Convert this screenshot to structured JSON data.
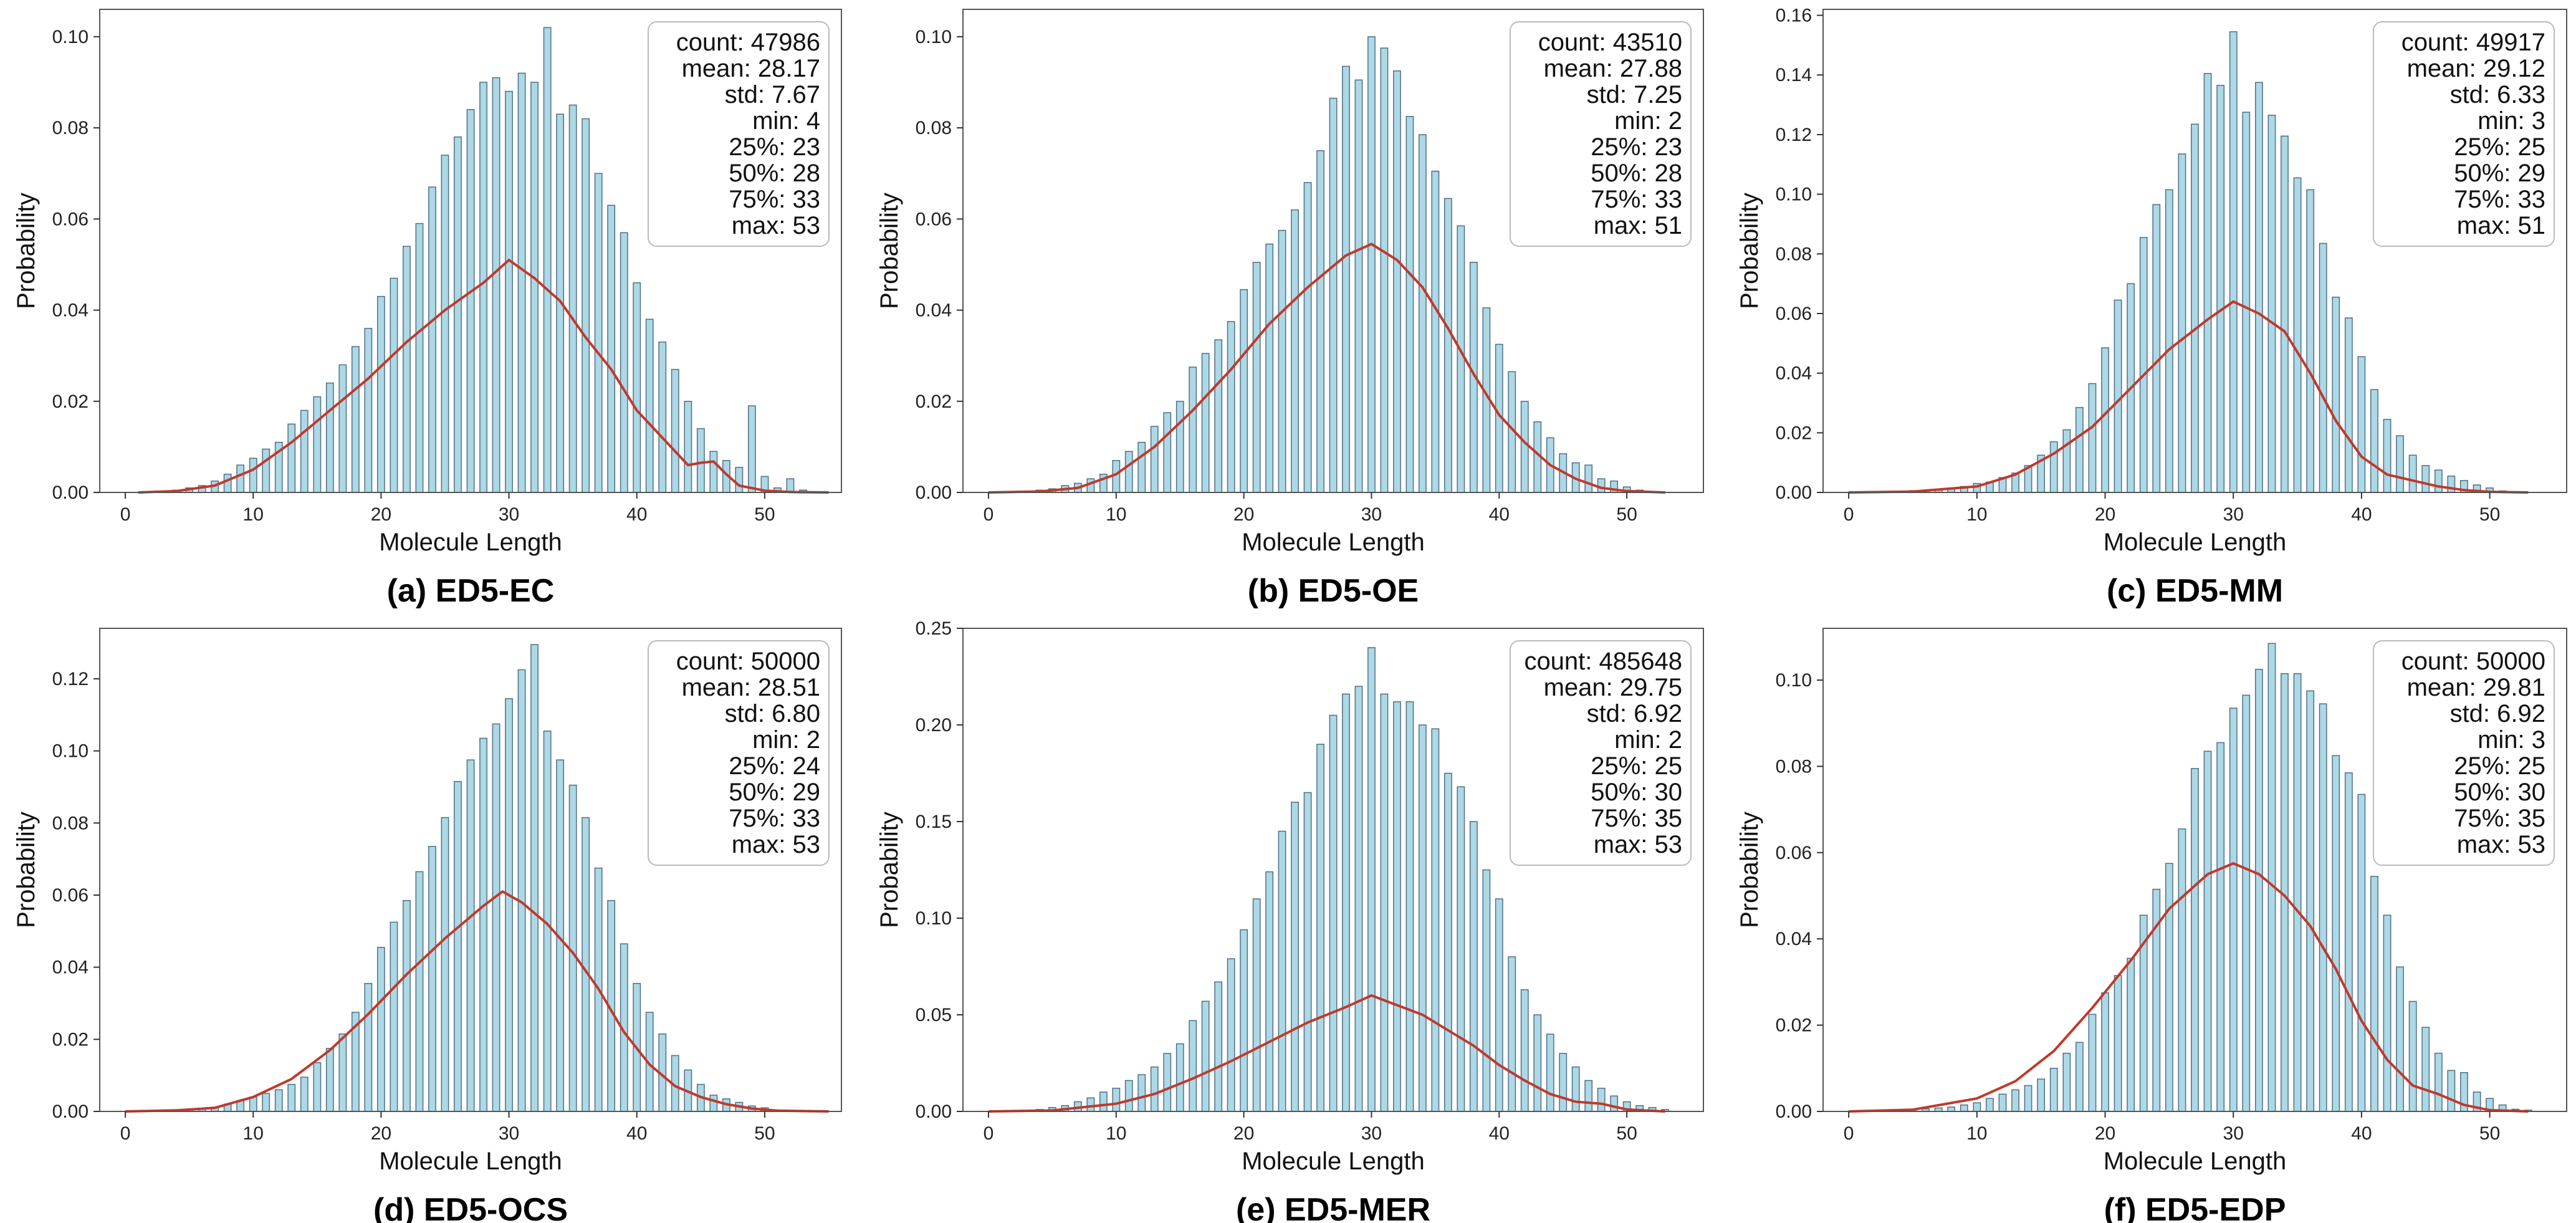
{
  "figure": {
    "background": "#ffffff"
  },
  "colors": {
    "bar_fill": "#add8e6",
    "bar_edge": "#4f6f86",
    "kde": "#c0392b",
    "frame": "#555555",
    "stats_box_edge": "#bbbbbb"
  },
  "chart_data": [
    {
      "id": "a",
      "type": "bar",
      "caption": "(a) ED5-EC",
      "xlabel": "Molecule Length",
      "ylabel": "Probability",
      "xlim": [
        -2,
        56
      ],
      "ylim": [
        0,
        0.106
      ],
      "xticks": [
        0,
        10,
        20,
        30,
        40,
        50
      ],
      "xtick_labels": [
        "0",
        "10",
        "20",
        "30",
        "40",
        "50"
      ],
      "yticks": [
        0,
        0.02,
        0.04,
        0.06,
        0.08,
        0.1
      ],
      "ytick_labels": [
        "0.00",
        "0.02",
        "0.04",
        "0.06",
        "0.08",
        "0.10"
      ],
      "stats": [
        "count: 47986",
        "mean: 28.17",
        "std: 7.67",
        "min: 4",
        "25%: 23",
        "50%: 28",
        "75%: 33",
        "max: 53"
      ],
      "x": [
        4,
        5,
        6,
        7,
        8,
        9,
        10,
        11,
        12,
        13,
        14,
        15,
        16,
        17,
        18,
        19,
        20,
        21,
        22,
        23,
        24,
        25,
        26,
        27,
        28,
        29,
        30,
        31,
        32,
        33,
        34,
        35,
        36,
        37,
        38,
        39,
        40,
        41,
        42,
        43,
        44,
        45,
        46,
        47,
        48,
        49,
        50,
        51,
        52,
        53
      ],
      "values": [
        0.0005,
        0.001,
        0.0015,
        0.0025,
        0.004,
        0.006,
        0.0075,
        0.0095,
        0.011,
        0.015,
        0.018,
        0.021,
        0.024,
        0.028,
        0.032,
        0.036,
        0.043,
        0.047,
        0.054,
        0.059,
        0.067,
        0.074,
        0.078,
        0.084,
        0.09,
        0.091,
        0.088,
        0.092,
        0.09,
        0.102,
        0.083,
        0.085,
        0.082,
        0.07,
        0.063,
        0.057,
        0.046,
        0.038,
        0.033,
        0.027,
        0.02,
        0.014,
        0.009,
        0.007,
        0.0055,
        0.019,
        0.0035,
        0.001,
        0.003,
        0.0005
      ],
      "kde_x": [
        1,
        4,
        7,
        10,
        13,
        16,
        19,
        22,
        25,
        28,
        30,
        32,
        34,
        36,
        38,
        40,
        42,
        44,
        45,
        46,
        47,
        48,
        50,
        52,
        55
      ],
      "kde_y": [
        0.0,
        0.0003,
        0.0015,
        0.005,
        0.011,
        0.018,
        0.025,
        0.033,
        0.04,
        0.046,
        0.051,
        0.047,
        0.042,
        0.034,
        0.027,
        0.018,
        0.012,
        0.006,
        0.0065,
        0.0068,
        0.004,
        0.0015,
        0.0004,
        0.0001,
        0.0
      ]
    },
    {
      "id": "b",
      "type": "bar",
      "caption": "(b) ED5-OE",
      "xlabel": "Molecule Length",
      "ylabel": "Probability",
      "xlim": [
        -2,
        56
      ],
      "ylim": [
        0,
        0.106
      ],
      "xticks": [
        0,
        10,
        20,
        30,
        40,
        50
      ],
      "xtick_labels": [
        "0",
        "10",
        "20",
        "30",
        "40",
        "50"
      ],
      "yticks": [
        0,
        0.02,
        0.04,
        0.06,
        0.08,
        0.1
      ],
      "ytick_labels": [
        "0.00",
        "0.02",
        "0.04",
        "0.06",
        "0.08",
        "0.10"
      ],
      "stats": [
        "count: 43510",
        "mean: 27.88",
        "std: 7.25",
        "min: 2",
        "25%: 23",
        "50%: 28",
        "75%: 33",
        "max: 51"
      ],
      "x": [
        2,
        3,
        4,
        5,
        6,
        7,
        8,
        9,
        10,
        11,
        12,
        13,
        14,
        15,
        16,
        17,
        18,
        19,
        20,
        21,
        22,
        23,
        24,
        25,
        26,
        27,
        28,
        29,
        30,
        31,
        32,
        33,
        34,
        35,
        36,
        37,
        38,
        39,
        40,
        41,
        42,
        43,
        44,
        45,
        46,
        47,
        48,
        49,
        50,
        51
      ],
      "values": [
        0.0002,
        0.0003,
        0.0005,
        0.0008,
        0.0015,
        0.002,
        0.003,
        0.004,
        0.007,
        0.009,
        0.011,
        0.0145,
        0.0175,
        0.02,
        0.0275,
        0.0305,
        0.0335,
        0.0375,
        0.0445,
        0.0505,
        0.0545,
        0.0575,
        0.062,
        0.068,
        0.075,
        0.0865,
        0.0935,
        0.0905,
        0.1,
        0.0975,
        0.0925,
        0.0825,
        0.0785,
        0.0705,
        0.0645,
        0.0585,
        0.0505,
        0.0405,
        0.0325,
        0.0265,
        0.02,
        0.0155,
        0.012,
        0.0085,
        0.0065,
        0.006,
        0.003,
        0.0025,
        0.0012,
        0.0005
      ],
      "kde_x": [
        0,
        4,
        7,
        10,
        13,
        16,
        19,
        22,
        25,
        28,
        30,
        32,
        34,
        36,
        38,
        40,
        42,
        44,
        46,
        48,
        50,
        53
      ],
      "kde_y": [
        0.0,
        0.0002,
        0.001,
        0.004,
        0.01,
        0.018,
        0.027,
        0.037,
        0.045,
        0.052,
        0.0545,
        0.051,
        0.045,
        0.036,
        0.026,
        0.017,
        0.011,
        0.006,
        0.003,
        0.001,
        0.0003,
        0.0
      ]
    },
    {
      "id": "c",
      "type": "bar",
      "caption": "(c) ED5-MM",
      "xlabel": "Molecule Length",
      "ylabel": "Probability",
      "xlim": [
        -2,
        56
      ],
      "ylim": [
        0,
        0.162
      ],
      "xticks": [
        0,
        10,
        20,
        30,
        40,
        50
      ],
      "xtick_labels": [
        "0",
        "10",
        "20",
        "30",
        "40",
        "50"
      ],
      "yticks": [
        0,
        0.02,
        0.04,
        0.06,
        0.08,
        0.1,
        0.12,
        0.14,
        0.16
      ],
      "ytick_labels": [
        "0.00",
        "0.02",
        "0.04",
        "0.06",
        "0.08",
        "0.10",
        "0.12",
        "0.14",
        "0.16"
      ],
      "stats": [
        "count: 49917",
        "mean: 29.12",
        "std: 6.33",
        "min: 3",
        "25%: 25",
        "50%: 29",
        "75%: 33",
        "max: 51"
      ],
      "x": [
        3,
        4,
        5,
        6,
        7,
        8,
        9,
        10,
        11,
        12,
        13,
        14,
        15,
        16,
        17,
        18,
        19,
        20,
        21,
        22,
        23,
        24,
        25,
        26,
        27,
        28,
        29,
        30,
        31,
        32,
        33,
        34,
        35,
        36,
        37,
        38,
        39,
        40,
        41,
        42,
        43,
        44,
        45,
        46,
        47,
        48,
        49,
        50,
        51
      ],
      "values": [
        0.0003,
        0.0004,
        0.0006,
        0.0008,
        0.001,
        0.0015,
        0.002,
        0.003,
        0.0035,
        0.005,
        0.0065,
        0.009,
        0.0125,
        0.017,
        0.021,
        0.0285,
        0.0365,
        0.0485,
        0.0645,
        0.07,
        0.0855,
        0.0965,
        0.1015,
        0.1135,
        0.1235,
        0.1405,
        0.1365,
        0.1545,
        0.1275,
        0.1375,
        0.1265,
        0.1195,
        0.1055,
        0.1015,
        0.0835,
        0.0655,
        0.0585,
        0.0455,
        0.0345,
        0.0245,
        0.019,
        0.0125,
        0.009,
        0.0075,
        0.0055,
        0.004,
        0.0025,
        0.0015,
        0.0005
      ],
      "kde_x": [
        0,
        5,
        10,
        13,
        16,
        19,
        22,
        25,
        28,
        30,
        32,
        34,
        36,
        38,
        40,
        42,
        44,
        46,
        48,
        50,
        53
      ],
      "kde_y": [
        0.0,
        0.0003,
        0.002,
        0.006,
        0.013,
        0.022,
        0.035,
        0.048,
        0.058,
        0.064,
        0.06,
        0.054,
        0.04,
        0.024,
        0.012,
        0.006,
        0.004,
        0.002,
        0.0008,
        0.0002,
        0.0
      ]
    },
    {
      "id": "d",
      "type": "bar",
      "caption": "(d) ED5-OCS",
      "xlabel": "Molecule Length",
      "ylabel": "Probability",
      "xlim": [
        -2,
        56
      ],
      "ylim": [
        0,
        0.134
      ],
      "xticks": [
        0,
        10,
        20,
        30,
        40,
        50
      ],
      "xtick_labels": [
        "0",
        "10",
        "20",
        "30",
        "40",
        "50"
      ],
      "yticks": [
        0,
        0.02,
        0.04,
        0.06,
        0.08,
        0.1,
        0.12
      ],
      "ytick_labels": [
        "0.00",
        "0.02",
        "0.04",
        "0.06",
        "0.08",
        "0.10",
        "0.12"
      ],
      "stats": [
        "count: 50000",
        "mean: 28.51",
        "std: 6.80",
        "min: 2",
        "25%: 24",
        "50%: 29",
        "75%: 33",
        "max: 53"
      ],
      "x": [
        2,
        3,
        4,
        5,
        6,
        7,
        8,
        9,
        10,
        11,
        12,
        13,
        14,
        15,
        16,
        17,
        18,
        19,
        20,
        21,
        22,
        23,
        24,
        25,
        26,
        27,
        28,
        29,
        30,
        31,
        32,
        33,
        34,
        35,
        36,
        37,
        38,
        39,
        40,
        41,
        42,
        43,
        44,
        45,
        46,
        47,
        48,
        49,
        50,
        51
      ],
      "values": [
        0.0002,
        0.0003,
        0.0004,
        0.0006,
        0.0008,
        0.0012,
        0.002,
        0.003,
        0.004,
        0.005,
        0.006,
        0.0075,
        0.0095,
        0.0135,
        0.0175,
        0.0215,
        0.0275,
        0.0355,
        0.0455,
        0.0525,
        0.0585,
        0.0665,
        0.0735,
        0.0815,
        0.0915,
        0.0975,
        0.1035,
        0.1075,
        0.1145,
        0.1225,
        0.1295,
        0.1055,
        0.0975,
        0.0905,
        0.0815,
        0.0675,
        0.0585,
        0.0465,
        0.0355,
        0.0275,
        0.0215,
        0.0155,
        0.0115,
        0.0075,
        0.0045,
        0.0035,
        0.0025,
        0.0015,
        0.001,
        0.0004
      ],
      "kde_x": [
        0,
        4,
        7,
        10,
        13,
        16,
        19,
        22,
        25,
        28,
        29.5,
        31,
        33,
        35,
        37,
        39,
        41,
        43,
        45,
        47,
        49,
        51,
        55
      ],
      "kde_y": [
        0.0,
        0.0003,
        0.001,
        0.004,
        0.009,
        0.017,
        0.027,
        0.038,
        0.048,
        0.057,
        0.061,
        0.058,
        0.052,
        0.044,
        0.034,
        0.022,
        0.013,
        0.007,
        0.004,
        0.002,
        0.0008,
        0.0002,
        0.0
      ]
    },
    {
      "id": "e",
      "type": "bar",
      "caption": "(e) ED5-MER",
      "xlabel": "Molecule Length",
      "ylabel": "Probability",
      "xlim": [
        -2,
        56
      ],
      "ylim": [
        0,
        0.25
      ],
      "xticks": [
        0,
        10,
        20,
        30,
        40,
        50
      ],
      "xtick_labels": [
        "0",
        "10",
        "20",
        "30",
        "40",
        "50"
      ],
      "yticks": [
        0,
        0.05,
        0.1,
        0.15,
        0.2,
        0.25
      ],
      "ytick_labels": [
        "0.00",
        "0.05",
        "0.10",
        "0.15",
        "0.20",
        "0.25"
      ],
      "stats": [
        "count: 485648",
        "mean: 29.75",
        "std: 6.92",
        "min: 2",
        "25%: 25",
        "50%: 30",
        "75%: 35",
        "max: 53"
      ],
      "x": [
        2,
        3,
        4,
        5,
        6,
        7,
        8,
        9,
        10,
        11,
        12,
        13,
        14,
        15,
        16,
        17,
        18,
        19,
        20,
        21,
        22,
        23,
        24,
        25,
        26,
        27,
        28,
        29,
        30,
        31,
        32,
        33,
        34,
        35,
        36,
        37,
        38,
        39,
        40,
        41,
        42,
        43,
        44,
        45,
        46,
        47,
        48,
        49,
        50,
        51,
        52,
        53
      ],
      "values": [
        0.0003,
        0.0005,
        0.001,
        0.002,
        0.003,
        0.005,
        0.007,
        0.01,
        0.012,
        0.016,
        0.019,
        0.023,
        0.03,
        0.035,
        0.047,
        0.057,
        0.067,
        0.079,
        0.094,
        0.11,
        0.124,
        0.145,
        0.16,
        0.165,
        0.19,
        0.205,
        0.216,
        0.22,
        0.24,
        0.216,
        0.212,
        0.212,
        0.2,
        0.198,
        0.175,
        0.168,
        0.15,
        0.125,
        0.11,
        0.08,
        0.063,
        0.05,
        0.04,
        0.03,
        0.023,
        0.016,
        0.012,
        0.008,
        0.005,
        0.003,
        0.002,
        0.001
      ],
      "kde_x": [
        0,
        5,
        10,
        13,
        16,
        19,
        22,
        25,
        28,
        30,
        32,
        34,
        36,
        38,
        40,
        42,
        44,
        46,
        48,
        50,
        53
      ],
      "kde_y": [
        0.0,
        0.0005,
        0.004,
        0.009,
        0.017,
        0.026,
        0.036,
        0.046,
        0.054,
        0.06,
        0.055,
        0.05,
        0.042,
        0.034,
        0.024,
        0.016,
        0.009,
        0.005,
        0.004,
        0.001,
        0.0
      ]
    },
    {
      "id": "f",
      "type": "bar",
      "caption": "(f) ED5-EDP",
      "xlabel": "Molecule Length",
      "ylabel": "Probability",
      "xlim": [
        -2,
        56
      ],
      "ylim": [
        0,
        0.112
      ],
      "xticks": [
        0,
        10,
        20,
        30,
        40,
        50
      ],
      "xtick_labels": [
        "0",
        "10",
        "20",
        "30",
        "40",
        "50"
      ],
      "yticks": [
        0,
        0.02,
        0.04,
        0.06,
        0.08,
        0.1
      ],
      "ytick_labels": [
        "0.00",
        "0.02",
        "0.04",
        "0.06",
        "0.08",
        "0.10"
      ],
      "stats": [
        "count: 50000",
        "mean: 29.81",
        "std: 6.92",
        "min: 3",
        "25%: 25",
        "50%: 30",
        "75%: 35",
        "max: 53"
      ],
      "x": [
        3,
        4,
        5,
        6,
        7,
        8,
        9,
        10,
        11,
        12,
        13,
        14,
        15,
        16,
        17,
        18,
        19,
        20,
        21,
        22,
        23,
        24,
        25,
        26,
        27,
        28,
        29,
        30,
        31,
        32,
        33,
        34,
        35,
        36,
        37,
        38,
        39,
        40,
        41,
        42,
        43,
        44,
        45,
        46,
        47,
        48,
        49,
        50,
        51,
        52,
        53
      ],
      "values": [
        0.0002,
        0.0003,
        0.0004,
        0.0006,
        0.0008,
        0.001,
        0.0015,
        0.002,
        0.003,
        0.004,
        0.005,
        0.006,
        0.0075,
        0.01,
        0.0135,
        0.016,
        0.0225,
        0.0275,
        0.0315,
        0.0355,
        0.0455,
        0.0515,
        0.0575,
        0.0655,
        0.0795,
        0.0835,
        0.0855,
        0.0935,
        0.0965,
        0.1025,
        0.1085,
        0.1015,
        0.1015,
        0.0975,
        0.0945,
        0.0825,
        0.0785,
        0.0735,
        0.0545,
        0.0455,
        0.0335,
        0.0255,
        0.0195,
        0.0135,
        0.0095,
        0.009,
        0.0045,
        0.003,
        0.0015,
        0.0005,
        0.0003
      ],
      "kde_x": [
        0,
        5,
        10,
        13,
        16,
        19,
        22,
        25,
        28,
        30,
        32,
        34,
        36,
        38,
        40,
        42,
        44,
        46,
        48,
        50,
        53
      ],
      "kde_y": [
        0.0,
        0.0004,
        0.003,
        0.007,
        0.014,
        0.024,
        0.035,
        0.047,
        0.055,
        0.0575,
        0.055,
        0.05,
        0.043,
        0.033,
        0.021,
        0.012,
        0.006,
        0.004,
        0.0015,
        0.0003,
        0.0
      ]
    }
  ]
}
